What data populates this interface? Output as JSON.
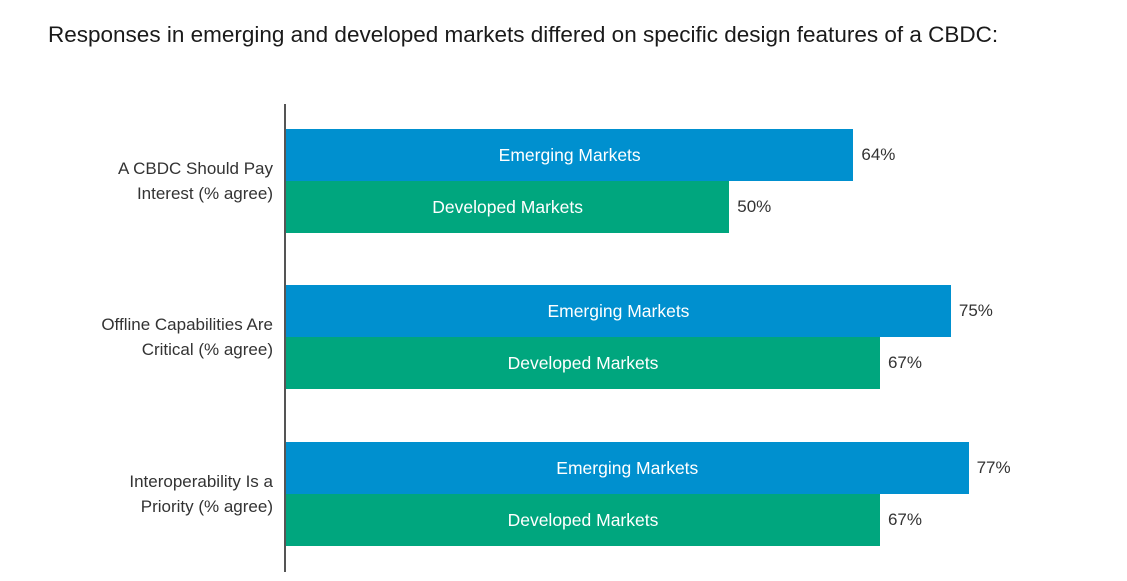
{
  "title": "Responses in emerging and developed markets differed on specific design features of a CBDC:",
  "colors": {
    "emerging": "#0090cf",
    "developed": "#00a67e",
    "axis": "#555555"
  },
  "chart_data": {
    "type": "bar",
    "orientation": "horizontal",
    "categories": [
      [
        "A CBDC Should Pay",
        "Interest (% agree)"
      ],
      [
        "Offline Capabilities Are",
        "Critical (% agree)"
      ],
      [
        "Interoperability Is a",
        "Priority (% agree)"
      ]
    ],
    "series": [
      {
        "name": "Emerging Markets",
        "values": [
          64,
          75,
          77
        ],
        "value_labels": [
          "64%",
          "75%",
          "77%"
        ]
      },
      {
        "name": "Developed Markets",
        "values": [
          50,
          67,
          67
        ],
        "value_labels": [
          "50%",
          "67%",
          "67%"
        ]
      }
    ],
    "xlim": [
      0,
      100
    ],
    "grid": false,
    "legend": "none"
  }
}
